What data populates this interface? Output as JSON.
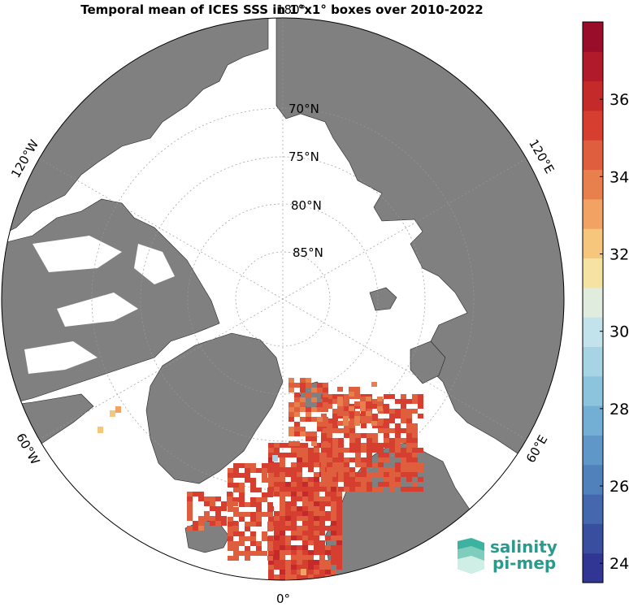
{
  "title": "Temporal mean of ICES SSS in 1°x1° boxes over 2010-2022",
  "map": {
    "projection": "north-polar-stereographic",
    "ocean_color": "#ffffff",
    "land_color": "#808080",
    "graticule_color": "#999999",
    "latitude_labels": [
      "70°N",
      "75°N",
      "80°N",
      "85°N"
    ],
    "longitude_labels": {
      "top": "180°",
      "left_upper": "120°W",
      "left_lower": "60°W",
      "right_upper": "120°E",
      "right_lower": "60°E",
      "bottom": "0°"
    }
  },
  "colorbar": {
    "orientation": "vertical",
    "min": 23.5,
    "max": 38,
    "colors": [
      "#313695",
      "#3a4ea0",
      "#4467ad",
      "#5081bb",
      "#5f98c8",
      "#73afd4",
      "#8cc3dd",
      "#a6d4e4",
      "#c2e3eb",
      "#e0ecdd",
      "#f6e3a4",
      "#f6c67d",
      "#f2a262",
      "#e8804d",
      "#df5e3e",
      "#d63e2f",
      "#c52a2a",
      "#b01a2a",
      "#990c2a"
    ],
    "ticks": [
      "24",
      "26",
      "28",
      "30",
      "32",
      "34",
      "36"
    ]
  },
  "logo": {
    "line1": "salinity",
    "line2": "pi-mep",
    "color": "#2a9a8c"
  }
}
